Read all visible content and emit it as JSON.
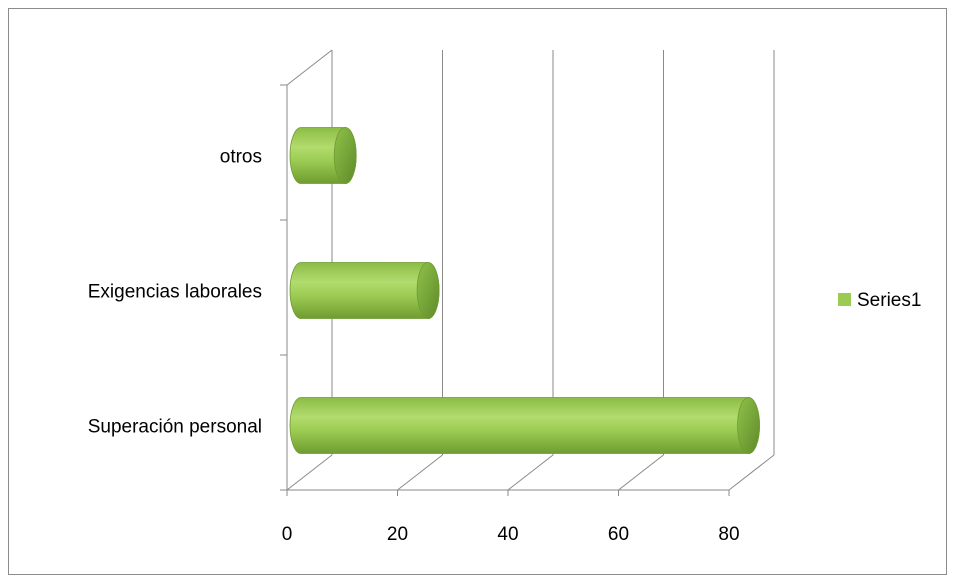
{
  "chart_data": {
    "type": "bar",
    "orientation": "horizontal",
    "style": "3d-cylinder",
    "categories": [
      "Superación personal",
      "Exigencias laborales",
      "otros"
    ],
    "series": [
      {
        "name": "Series1",
        "values": [
          81,
          23,
          8
        ],
        "color": "#9bcb52"
      }
    ],
    "xlim": [
      0,
      80
    ],
    "xticks": [
      0,
      20,
      40,
      60,
      80
    ],
    "grid": true,
    "legend": "right"
  }
}
